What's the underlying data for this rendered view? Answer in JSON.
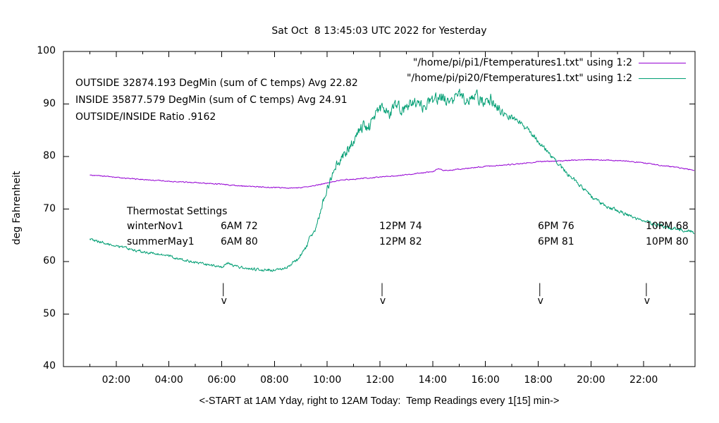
{
  "chart_data": {
    "type": "line",
    "title": "Sat Oct  8 13:45:03 UTC 2022 for Yesterday",
    "xlabel": "<-START at 1AM Yday, right to 12AM Today:  Temp Readings every 1[15] min->",
    "ylabel": "deg Fahrenheit",
    "xlim": [
      0,
      24
    ],
    "ylim": [
      40,
      100
    ],
    "grid": false,
    "y_ticks": [
      40,
      50,
      60,
      70,
      80,
      90,
      100
    ],
    "x_major_ticks": [
      {
        "value": 2,
        "label": "02:00"
      },
      {
        "value": 4,
        "label": "04:00"
      },
      {
        "value": 6,
        "label": "06:00"
      },
      {
        "value": 8,
        "label": "08:00"
      },
      {
        "value": 10,
        "label": "10:00"
      },
      {
        "value": 12,
        "label": "12:00"
      },
      {
        "value": 14,
        "label": "14:00"
      },
      {
        "value": 16,
        "label": "16:00"
      },
      {
        "value": 18,
        "label": "18:00"
      },
      {
        "value": 20,
        "label": "20:00"
      },
      {
        "value": 22,
        "label": "22:00"
      }
    ],
    "x_minor_ticks": [
      1,
      3,
      5,
      7,
      9,
      11,
      13,
      15,
      17,
      19,
      21,
      23
    ],
    "legend": {
      "position": "top-right",
      "entries": [
        {
          "label": "\"/home/pi/pi1/Ftemperatures1.txt\" using 1:2",
          "color": "#9400d3"
        },
        {
          "label": "\"/home/pi/pi20/Ftemperatures1.txt\" using 1:2",
          "color": "#009e73"
        }
      ]
    },
    "annotations": [
      "OUTSIDE 32874.193 DegMin (sum of C temps) Avg 22.82",
      "INSIDE 35877.579 DegMin (sum of C temps) Avg 24.91",
      "OUTSIDE/INSIDE Ratio .9162"
    ],
    "thermostat_settings": {
      "header": "Thermostat Settings",
      "rows": [
        {
          "name": "winterNov1",
          "values": [
            "6AM 72",
            "12PM 74",
            "6PM 76",
            "10PM 68"
          ]
        },
        {
          "name": "summerMay1",
          "values": [
            "6AM 80",
            "12PM 82",
            "6PM 81",
            "10PM 80"
          ]
        }
      ]
    },
    "arrows": {
      "hours": [
        6.06,
        12.08,
        18.06,
        22.1
      ],
      "from_f": 55.9,
      "to_f": 53.4
    },
    "series": [
      {
        "name": "inside-pi1",
        "color": "#9400d3",
        "noise_amp": [
          [
            1,
            0.09
          ],
          [
            23.9,
            0.09
          ]
        ],
        "points": [
          [
            1.0,
            76.5
          ],
          [
            2.0,
            76.0
          ],
          [
            3.0,
            75.6
          ],
          [
            4.0,
            75.3
          ],
          [
            5.0,
            75.0
          ],
          [
            6.0,
            74.7
          ],
          [
            7.0,
            74.3
          ],
          [
            8.0,
            74.1
          ],
          [
            8.8,
            74.0
          ],
          [
            9.4,
            74.3
          ],
          [
            10.0,
            75.0
          ],
          [
            10.5,
            75.5
          ],
          [
            11.0,
            75.7
          ],
          [
            12.0,
            76.1
          ],
          [
            13.0,
            76.5
          ],
          [
            13.6,
            76.9
          ],
          [
            14.0,
            77.1
          ],
          [
            14.2,
            77.7
          ],
          [
            14.45,
            77.3
          ],
          [
            15.0,
            77.6
          ],
          [
            16.0,
            78.1
          ],
          [
            17.0,
            78.5
          ],
          [
            18.0,
            79.0
          ],
          [
            19.0,
            79.2
          ],
          [
            19.8,
            79.4
          ],
          [
            20.6,
            79.3
          ],
          [
            21.2,
            79.2
          ],
          [
            22.0,
            78.8
          ],
          [
            22.7,
            78.3
          ],
          [
            23.3,
            77.9
          ],
          [
            23.93,
            77.4
          ]
        ]
      },
      {
        "name": "outside-pi20",
        "color": "#009e73",
        "noise_amp": [
          [
            1,
            0.22
          ],
          [
            8.5,
            0.25
          ],
          [
            9.5,
            0.5
          ],
          [
            10.5,
            0.8
          ],
          [
            11.5,
            1.0
          ],
          [
            16.2,
            1.0
          ],
          [
            17.0,
            0.55
          ],
          [
            18.5,
            0.38
          ],
          [
            20,
            0.3
          ],
          [
            23.9,
            0.28
          ]
        ],
        "points": [
          [
            1.0,
            64.3
          ],
          [
            1.35,
            63.8
          ],
          [
            2.0,
            63.0
          ],
          [
            2.7,
            62.2
          ],
          [
            3.3,
            61.6
          ],
          [
            4.0,
            61.1
          ],
          [
            4.4,
            60.5
          ],
          [
            5.0,
            59.8
          ],
          [
            5.6,
            59.2
          ],
          [
            6.0,
            59.0
          ],
          [
            6.25,
            59.8
          ],
          [
            6.5,
            59.1
          ],
          [
            7.0,
            58.7
          ],
          [
            7.5,
            58.4
          ],
          [
            8.1,
            58.4
          ],
          [
            8.5,
            59.0
          ],
          [
            8.9,
            60.5
          ],
          [
            9.2,
            62.8
          ],
          [
            9.6,
            67.0
          ],
          [
            10.0,
            74.0
          ],
          [
            10.35,
            78.2
          ],
          [
            10.7,
            80.8
          ],
          [
            11.0,
            83.2
          ],
          [
            11.35,
            85.8
          ],
          [
            11.6,
            85.6
          ],
          [
            11.85,
            88.2
          ],
          [
            12.1,
            89.3
          ],
          [
            12.35,
            87.8
          ],
          [
            12.6,
            89.8
          ],
          [
            12.9,
            88.6
          ],
          [
            13.25,
            90.3
          ],
          [
            13.6,
            89.2
          ],
          [
            14.0,
            90.6
          ],
          [
            14.35,
            91.4
          ],
          [
            14.65,
            89.8
          ],
          [
            15.0,
            92.0
          ],
          [
            15.25,
            90.8
          ],
          [
            15.55,
            91.9
          ],
          [
            15.9,
            90.3
          ],
          [
            16.2,
            91.2
          ],
          [
            16.6,
            88.6
          ],
          [
            17.0,
            87.4
          ],
          [
            17.4,
            86.0
          ],
          [
            17.8,
            84.0
          ],
          [
            18.2,
            81.8
          ],
          [
            18.65,
            79.2
          ],
          [
            19.0,
            77.3
          ],
          [
            19.5,
            74.9
          ],
          [
            20.0,
            72.4
          ],
          [
            20.5,
            70.7
          ],
          [
            21.0,
            69.7
          ],
          [
            21.5,
            68.7
          ],
          [
            22.0,
            67.7
          ],
          [
            22.5,
            67.0
          ],
          [
            23.0,
            66.4
          ],
          [
            23.5,
            66.0
          ],
          [
            23.93,
            65.6
          ]
        ]
      }
    ]
  }
}
